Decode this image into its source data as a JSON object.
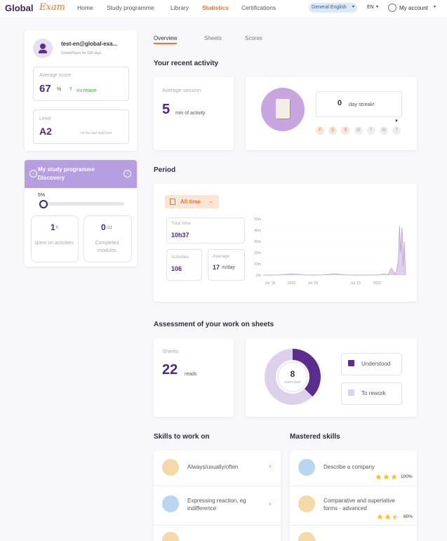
{
  "nav": {
    "logo_main": "Global",
    "logo_accent": "Exam",
    "items": [
      "Home",
      "Study programme",
      "Library",
      "Statistics",
      "Certifications"
    ],
    "active": 3,
    "course": "General English",
    "language": "EN",
    "account": "My account"
  },
  "profile": {
    "email": "test-en@global-exa...",
    "subtitle": "GlobalPlayer for 186 days",
    "score_label": "Average score",
    "score": 67,
    "score_unit": "%",
    "trend": "increase",
    "level_label": "Level",
    "level": "A2",
    "level_note": "on the last level test"
  },
  "programme": {
    "title": "My study programme",
    "name": "Discovery",
    "progress": {
      "value": 5,
      "label": "5%"
    },
    "hours": 1,
    "hours_unit": "h",
    "hours_label": "spent on activities",
    "modules": 0,
    "modules_total": "/11",
    "modules_label": "Completed modules"
  },
  "tabs": {
    "items": [
      "Overview",
      "Sheets",
      "Scores"
    ],
    "active": 0
  },
  "activity": {
    "title": "Your recent activity",
    "session_label": "Average session",
    "session": 5,
    "session_unit": "min of activity",
    "streak": 0,
    "streak_label": "day streak!",
    "days": [
      "F",
      "S",
      "S",
      "M",
      "T",
      "W",
      "T"
    ],
    "days_highlighted": [
      true,
      true,
      true,
      false,
      false,
      false,
      false
    ]
  },
  "period": {
    "title": "Period",
    "filter": "All time",
    "total_label": "Total time",
    "total": "10h37",
    "activities_label": "Activities",
    "activities": 106,
    "average_label": "Average",
    "average": 17,
    "average_unit": "m/day",
    "chart": {
      "type": "line",
      "x": [
        -2,
        2,
        6,
        10,
        14,
        18,
        22,
        26,
        30,
        32,
        33,
        34,
        35,
        35.5,
        36,
        36.3,
        36.6,
        37,
        37.3,
        37.6,
        38
      ],
      "values": [
        0,
        0,
        1,
        0,
        0,
        1,
        0,
        0,
        0,
        1,
        0,
        6,
        1,
        3,
        15,
        44,
        20,
        42,
        8,
        30,
        0
      ],
      "color": "#b89ad6",
      "xlim": [
        -2,
        38
      ],
      "ylim": [
        0,
        50
      ],
      "xticks": [
        {
          "value": 0,
          "label": "Jul '19"
        },
        {
          "value": 6,
          "label": "2020"
        },
        {
          "value": 12,
          "label": "Jul '20"
        },
        {
          "value": 24,
          "label": "Jul '21"
        },
        {
          "value": 30,
          "label": "2022"
        }
      ],
      "yticks": [
        {
          "value": 0,
          "label": "0m"
        },
        {
          "value": 10,
          "label": "10m"
        },
        {
          "value": 20,
          "label": "20m"
        },
        {
          "value": 30,
          "label": "30m"
        },
        {
          "value": 40,
          "label": "40m"
        },
        {
          "value": 50,
          "label": "50m"
        }
      ],
      "grid": true
    }
  },
  "sheets": {
    "title": "Assessment of your work on sheets",
    "reads_label": "Sheets",
    "reads": 22,
    "reads_unit": "reads",
    "exercises": 8,
    "exercises_label": "exercises",
    "chart": {
      "type": "pie",
      "categories": [
        "Understood",
        "To rework"
      ],
      "values": [
        3,
        5
      ],
      "colors": [
        "#5b2d8e",
        "#ddd0ea"
      ]
    }
  },
  "skills": {
    "title": "Skills to work on",
    "items": [
      {
        "name": "Always/usually/often",
        "icon": "sheet"
      },
      {
        "name": "Expressing reaction, eg indifference",
        "icon": "chat"
      }
    ]
  },
  "mastered": {
    "title": "Mastered skills",
    "items": [
      {
        "name": "Describe a company",
        "icon": "chat",
        "stars": 3,
        "score": "100%"
      },
      {
        "name": "Comparative and superlative forms - advanced",
        "icon": "sheet",
        "stars": 2.5,
        "score": "80%"
      }
    ]
  }
}
